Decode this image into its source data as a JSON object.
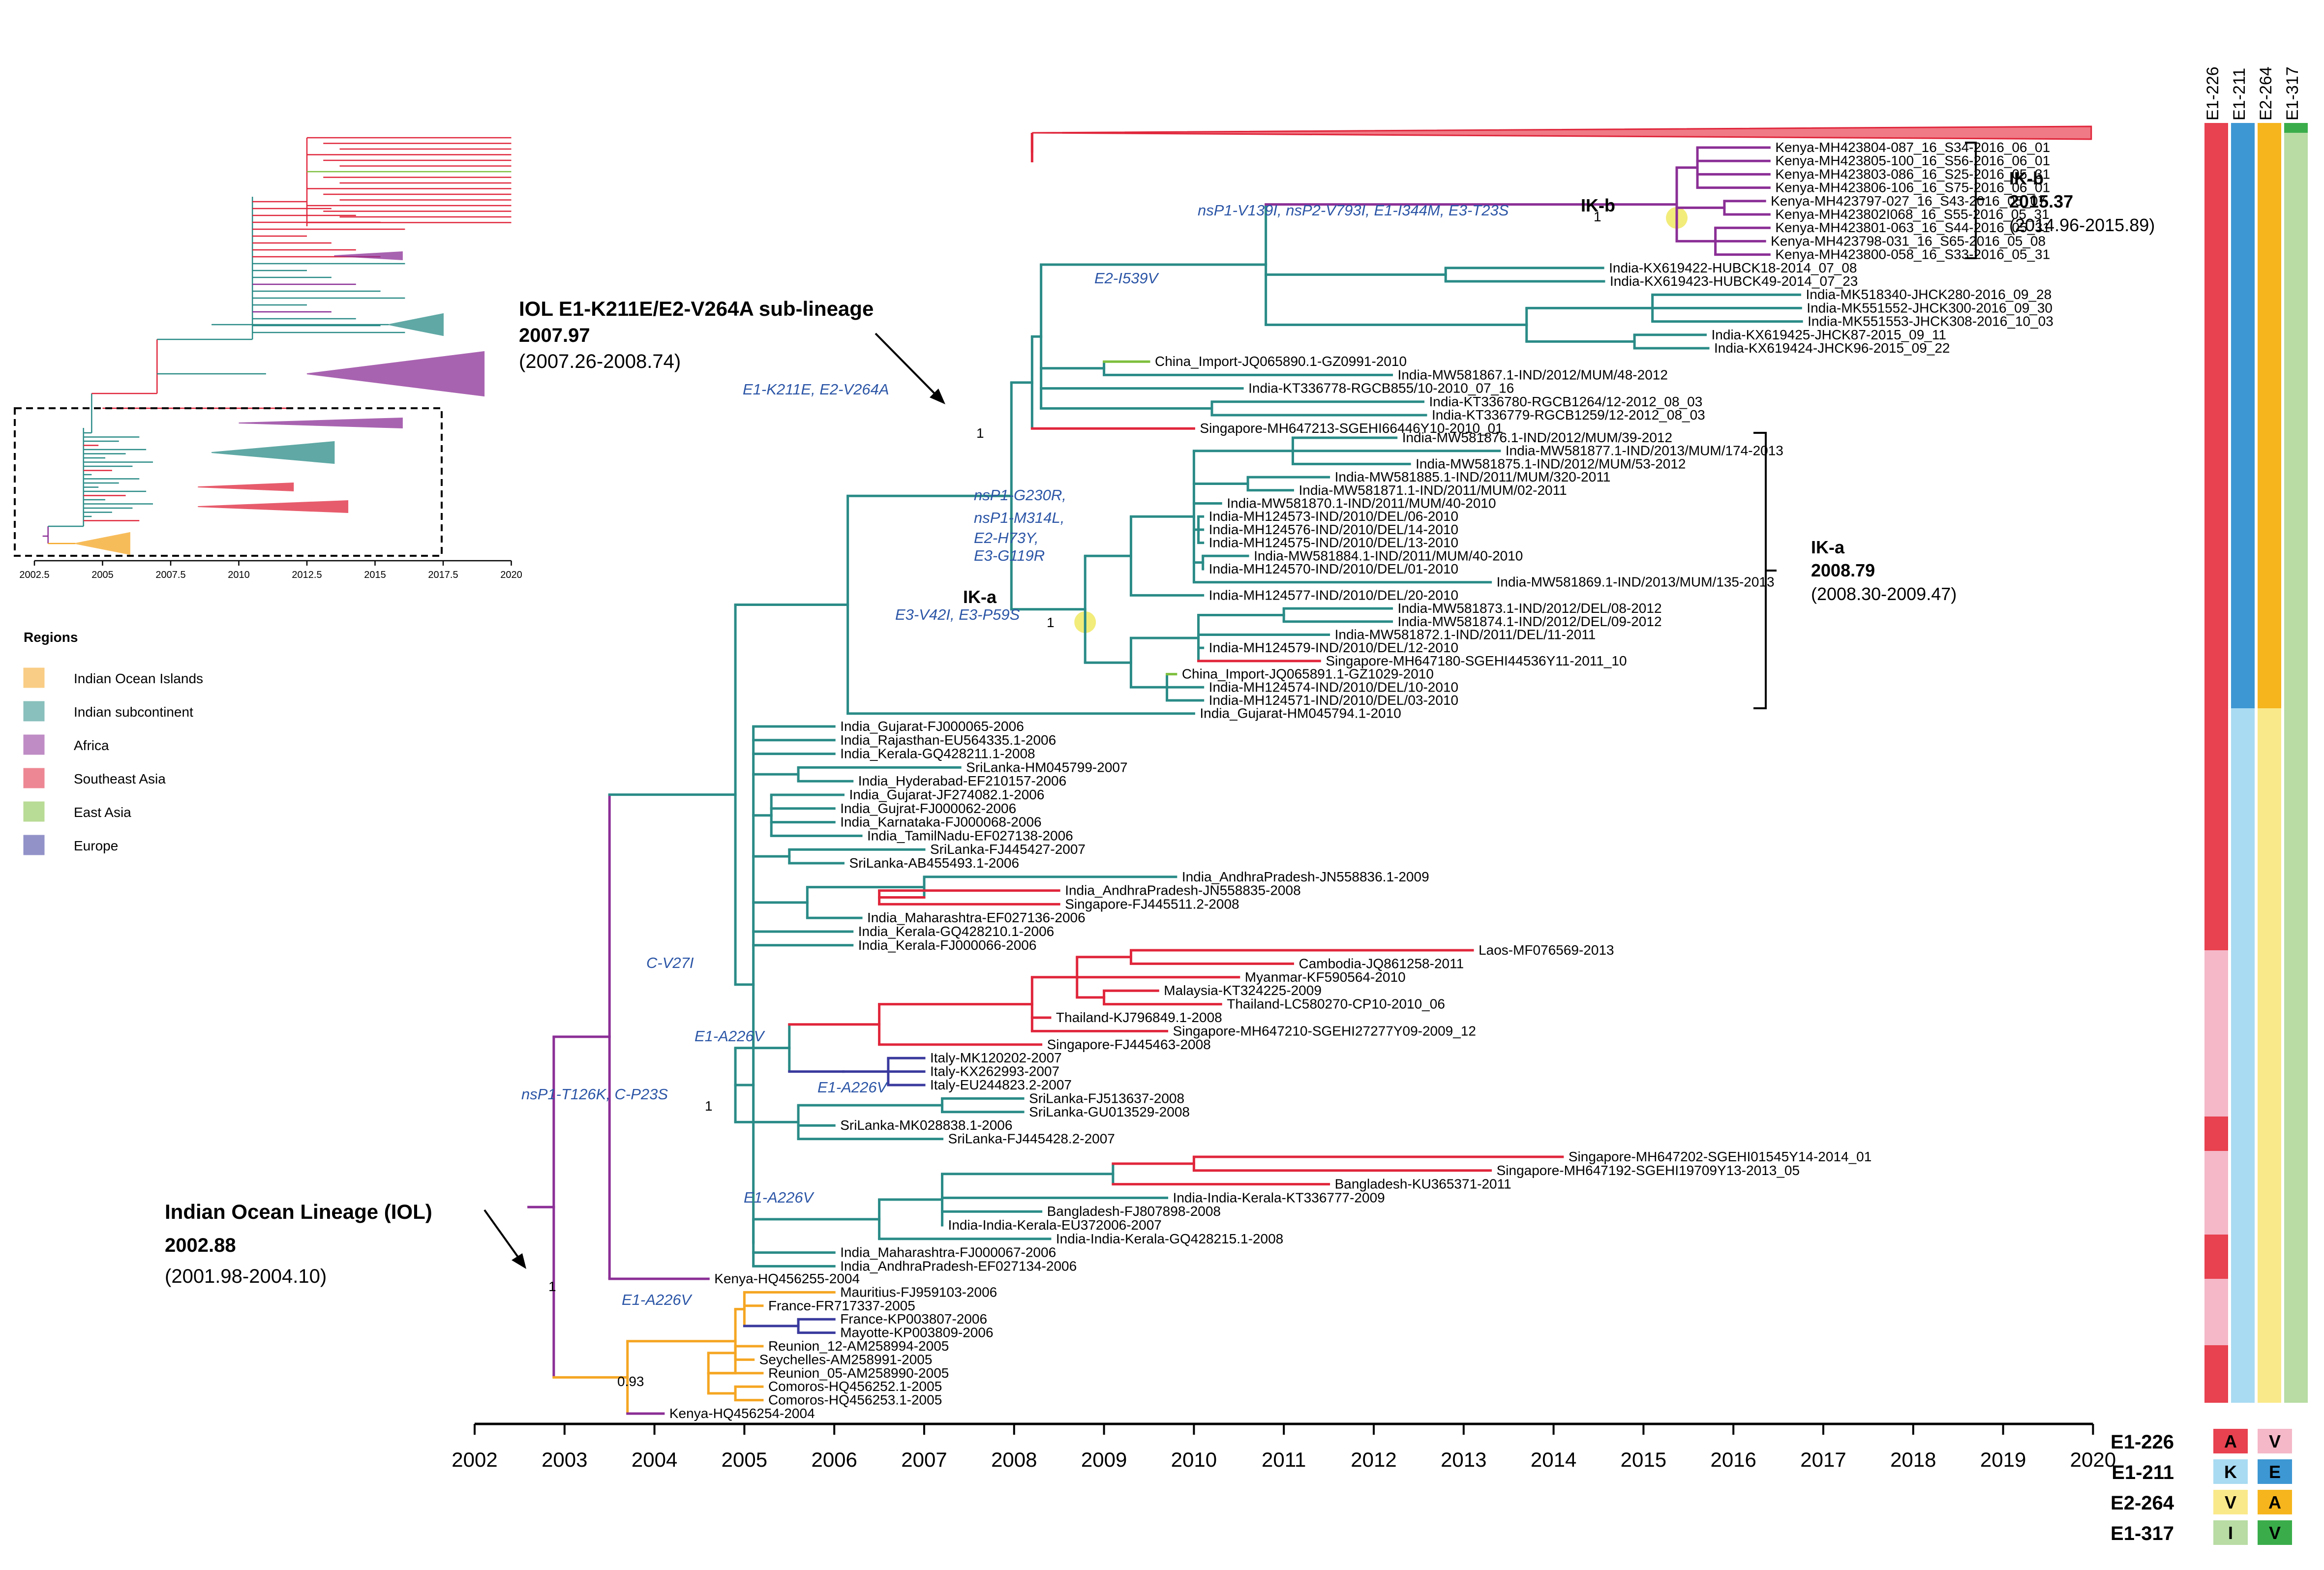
{
  "colors": {
    "indian_ocean": "#f5a623",
    "indian_subcontinent": "#2a8b87",
    "africa": "#8b2f96",
    "southeast_asia": "#e0263b",
    "east_asia": "#7fbf3f",
    "europe": "#3a3a9e",
    "mutation_text": "#2b55a6",
    "highlight": "#f2ec7a"
  },
  "axis": {
    "ticks": [
      "2002",
      "2003",
      "2004",
      "2005",
      "2006",
      "2007",
      "2008",
      "2009",
      "2010",
      "2011",
      "2012",
      "2013",
      "2014",
      "2015",
      "2016",
      "2017",
      "2018",
      "2019",
      "2020"
    ]
  },
  "inset": {
    "ticks": [
      "2002.5",
      "2005",
      "2007.5",
      "2010",
      "2012.5",
      "2015",
      "2017.5",
      "2020"
    ]
  },
  "legend": {
    "title": "Regions",
    "items": [
      {
        "label": "Indian Ocean Islands",
        "key": "indian_ocean"
      },
      {
        "label": "Indian subcontinent",
        "key": "indian_subcontinent"
      },
      {
        "label": "Africa",
        "key": "africa"
      },
      {
        "label": "Southeast Asia",
        "key": "southeast_asia"
      },
      {
        "label": "East Asia",
        "key": "east_asia"
      },
      {
        "label": "Europe",
        "key": "europe"
      }
    ]
  },
  "annotations": {
    "iol": {
      "title": "Indian Ocean Lineage (IOL)",
      "date": "2002.88",
      "ci": "(2001.98-2004.10)"
    },
    "sub": {
      "title": "IOL E1-K211E/E2-V264A sub-lineage",
      "date": "2007.97",
      "ci": "(2007.26-2008.74)"
    },
    "ika": {
      "label": "IK-a",
      "date": "2008.79",
      "ci": "(2008.30-2009.47)"
    },
    "ikb": {
      "label": "IK-b",
      "date": "2015.37",
      "ci": "(2014.96-2015.89)"
    }
  },
  "mutations": [
    "E1-K211E, E2-V264A",
    "nsP1-V139I, nsP2-V793I, E1-I344M, E3-T23S",
    "E2-I539V",
    "nsP1-G230R,",
    "nsP1-M314L,",
    "E2-H73Y,",
    "E3-G119R",
    "E3-V42I, E3-P59S",
    "C-V27I",
    "E1-A226V",
    "nsP1-T126K, C-P23S",
    "E1-A226V",
    "E1-A226V",
    "E1-A226V"
  ],
  "bootstrap": [
    "1",
    "1",
    "1",
    "1",
    "1",
    "0.93"
  ],
  "node_labels": [
    "IK-a",
    "IK-b"
  ],
  "tips": [
    "Kenya-MH423804-087_16_S34-2016_06_01",
    "Kenya-MH423805-100_16_S56-2016_06_01",
    "Kenya-MH423803-086_16_S25-2016_05_31",
    "Kenya-MH423806-106_16_S75-2016_06_01",
    "Kenya-MH423797-027_16_S43-2016_05_07",
    "Kenya-MH423802I068_16_S55-2016_05_31",
    "Kenya-MH423801-063_16_S44-2016_05_31",
    "Kenya-MH423798-031_16_S65-2016_05_08",
    "Kenya-MH423800-058_16_S33-2016_05_31",
    "India-KX619422-HUBCK18-2014_07_08",
    "India-KX619423-HUBCK49-2014_07_23",
    "India-MK518340-JHCK280-2016_09_28",
    "India-MK551552-JHCK300-2016_09_30",
    "India-MK551553-JHCK308-2016_10_03",
    "India-KX619425-JHCK87-2015_09_11",
    "India-KX619424-JHCK96-2015_09_22",
    "China_Import-JQ065890.1-GZ0991-2010",
    "India-MW581867.1-IND/2012/MUM/48-2012",
    "India-KT336778-RGCB855/10-2010_07_16",
    "India-KT336780-RGCB1264/12-2012_08_03",
    "India-KT336779-RGCB1259/12-2012_08_03",
    "Singapore-MH647213-SGEHI66446Y10-2010_01",
    "India-MW581876.1-IND/2012/MUM/39-2012",
    "India-MW581877.1-IND/2013/MUM/174-2013",
    "India-MW581875.1-IND/2012/MUM/53-2012",
    "India-MW581885.1-IND/2011/MUM/320-2011",
    "India-MW581871.1-IND/2011/MUM/02-2011",
    "India-MW581870.1-IND/2011/MUM/40-2010",
    "India-MH124573-IND/2010/DEL/06-2010",
    "India-MH124576-IND/2010/DEL/14-2010",
    "India-MH124575-IND/2010/DEL/13-2010",
    "India-MW581884.1-IND/2011/MUM/40-2010",
    "India-MH124570-IND/2010/DEL/01-2010",
    "India-MW581869.1-IND/2013/MUM/135-2013",
    "India-MH124577-IND/2010/DEL/20-2010",
    "India-MW581873.1-IND/2012/DEL/08-2012",
    "India-MW581874.1-IND/2012/DEL/09-2012",
    "India-MW581872.1-IND/2011/DEL/11-2011",
    "India-MH124579-IND/2010/DEL/12-2010",
    "Singapore-MH647180-SGEHI44536Y11-2011_10",
    "China_Import-JQ065891.1-GZ1029-2010",
    "India-MH124574-IND/2010/DEL/10-2010",
    "India-MH124571-IND/2010/DEL/03-2010",
    "India_Gujarat-HM045794.1-2010",
    "India_Gujarat-FJ000065-2006",
    "India_Rajasthan-EU564335.1-2006",
    "India_Kerala-GQ428211.1-2008",
    "SriLanka-HM045799-2007",
    "India_Hyderabad-EF210157-2006",
    "India_Gujarat-JF274082.1-2006",
    "India_Gujrat-FJ000062-2006",
    "India_Karnataka-FJ000068-2006",
    "India_TamilNadu-EF027138-2006",
    "SriLanka-FJ445427-2007",
    "SriLanka-AB455493.1-2006",
    "India_AndhraPradesh-JN558836.1-2009",
    "India_AndhraPradesh-JN558835-2008",
    "Singapore-FJ445511.2-2008",
    "India_Maharashtra-EF027136-2006",
    "India_Kerala-GQ428210.1-2006",
    "India_Kerala-FJ000066-2006",
    "Laos-MF076569-2013",
    "Cambodia-JQ861258-2011",
    "Myanmar-KF590564-2010",
    "Malaysia-KT324225-2009",
    "Thailand-LC580270-CP10-2010_06",
    "Thailand-KJ796849.1-2008",
    "Singapore-MH647210-SGEHI27277Y09-2009_12",
    "Singapore-FJ445463-2008",
    "Italy-MK120202-2007",
    "Italy-KX262993-2007",
    "Italy-EU244823.2-2007",
    "SriLanka-FJ513637-2008",
    "SriLanka-GU013529-2008",
    "SriLanka-MK028838.1-2006",
    "SriLanka-FJ445428.2-2007",
    "Singapore-MH647202-SGEHI01545Y14-2014_01",
    "Singapore-MH647192-SGEHI19709Y13-2013_05",
    "Bangladesh-KU365371-2011",
    "India-India-Kerala-KT336777-2009",
    "Bangladesh-FJ807898-2008",
    "India-India-Kerala-EU372006-2007",
    "India-India-Kerala-GQ428215.1-2008",
    "India_Maharashtra-FJ000067-2006",
    "India_AndhraPradesh-EF027134-2006",
    "Kenya-HQ456255-2004",
    "Mauritius-FJ959103-2006",
    "France-FR717337-2005",
    "France-KP003807-2006",
    "Mayotte-KP003809-2006",
    "Reunion_12-AM258994-2005",
    "Seychelles-AM258991-2005",
    "Reunion_05-AM258990-2005",
    "Comoros-HQ456252.1-2005",
    "Comoros-HQ456253.1-2005",
    "Kenya-HQ456254-2004"
  ],
  "columns": [
    "E1-226",
    "E1-211",
    "E2-264",
    "E1-317"
  ],
  "key": {
    "rows": [
      {
        "label": "E1-226",
        "a": "A",
        "b": "V",
        "ca": "#e8414f",
        "cb": "#f4b8c8"
      },
      {
        "label": "E1-211",
        "a": "K",
        "b": "E",
        "ca": "#a9dbf2",
        "cb": "#3d97d3"
      },
      {
        "label": "E2-264",
        "a": "V",
        "b": "A",
        "ca": "#fae98a",
        "cb": "#f6b51d"
      },
      {
        "label": "E1-317",
        "a": "I",
        "b": "V",
        "ca": "#b8dca4",
        "cb": "#3aad4a"
      }
    ]
  }
}
